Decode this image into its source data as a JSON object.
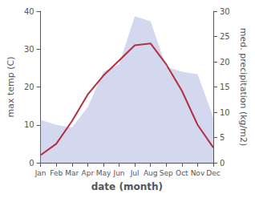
{
  "chart_data": {
    "type": "line",
    "categories": [
      "Jan",
      "Feb",
      "Mar",
      "Apr",
      "May",
      "Jun",
      "Jul",
      "Aug",
      "Sep",
      "Oct",
      "Nov",
      "Dec"
    ],
    "xlabel": "date (month)",
    "ylabel": "max temp (C)",
    "y2label": "med. precipitation (kg/m2)",
    "ylim": [
      0,
      40
    ],
    "yticks": [
      0,
      10,
      20,
      30,
      40
    ],
    "y2lim": [
      0,
      30
    ],
    "y2ticks": [
      0,
      5,
      10,
      15,
      20,
      25,
      30
    ],
    "grid": false,
    "series": [
      {
        "type": "area",
        "color": "#b0b8e0",
        "axis": "y2",
        "values": [
          8.5,
          7.5,
          7.0,
          11.0,
          18.0,
          19.5,
          29.0,
          28.0,
          19.0,
          18.0,
          17.5,
          9.0
        ]
      },
      {
        "type": "line",
        "color": "#b03040",
        "values": [
          2.0,
          5.0,
          11.0,
          18.0,
          23.0,
          27.0,
          31.0,
          31.5,
          26.0,
          19.0,
          10.0,
          4.0
        ]
      }
    ]
  }
}
